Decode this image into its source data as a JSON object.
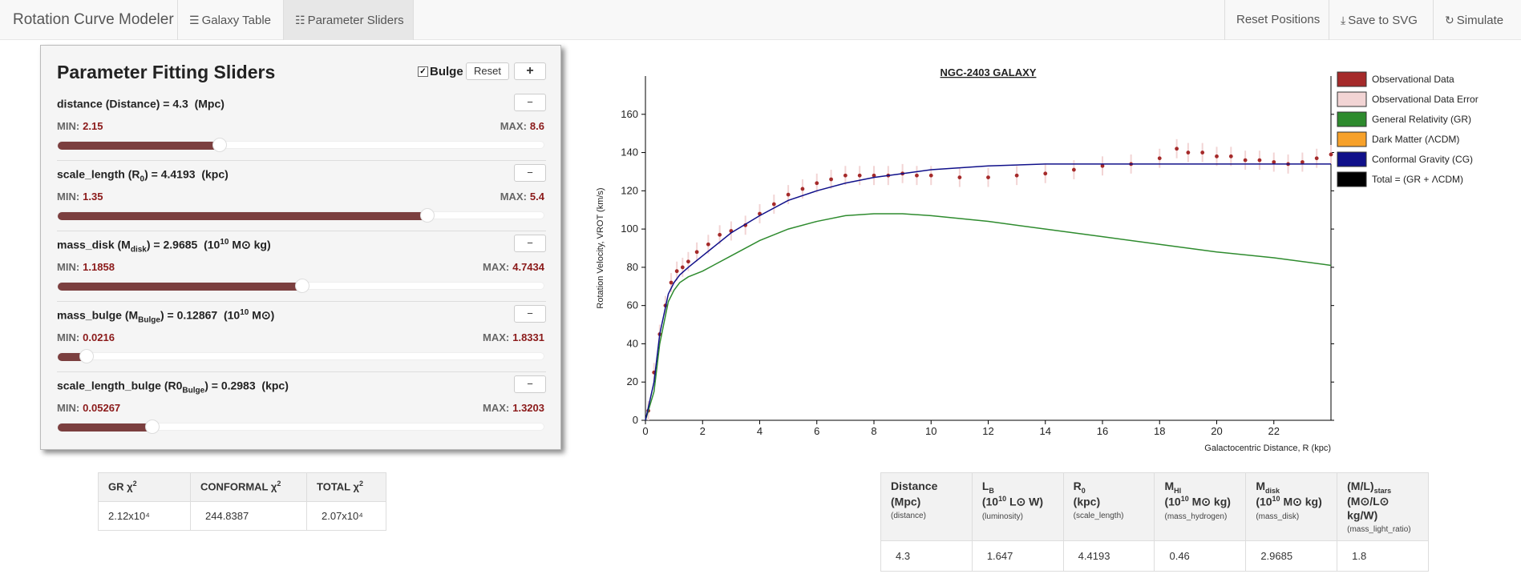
{
  "navbar": {
    "brand": "Rotation Curve Modeler",
    "galaxy_table": "Galaxy Table",
    "parameter_sliders": "Parameter Sliders",
    "reset_positions": "Reset Positions",
    "save_svg": "Save to SVG",
    "simulate": "Simulate"
  },
  "panel": {
    "title": "Parameter Fitting Sliders",
    "bulge_label": "Bulge",
    "bulge_checked": true,
    "reset_label": "Reset",
    "add_label": "+",
    "minus_label": "−",
    "min_label": "MIN:",
    "max_label": "MAX:",
    "sliders": [
      {
        "name": "distance",
        "symbol": "Distance",
        "sub": "",
        "value": "4.3",
        "unit_pre": "",
        "unit_sup": "",
        "unit_post": "(Mpc)",
        "min": "2.15",
        "max": "8.6",
        "fraction": 0.333
      },
      {
        "name": "scale_length",
        "symbol": "R",
        "sub": "0",
        "value": "4.4193",
        "unit_pre": "",
        "unit_sup": "",
        "unit_post": "(kpc)",
        "min": "1.35",
        "max": "5.4",
        "fraction": 0.758
      },
      {
        "name": "mass_disk",
        "symbol": "M",
        "sub": "disk",
        "value": "2.9685",
        "unit_pre": "(10",
        "unit_sup": "10",
        "unit_post": "M⊙ kg)",
        "min": "1.1858",
        "max": "4.7434",
        "fraction": 0.501
      },
      {
        "name": "mass_bulge",
        "symbol": "M",
        "sub": "Bulge",
        "value": "0.12867",
        "unit_pre": "(10",
        "unit_sup": "10",
        "unit_post": "M⊙)",
        "min": "0.0216",
        "max": "1.8331",
        "fraction": 0.059
      },
      {
        "name": "scale_length_bulge",
        "symbol": "R0",
        "sub": "Bulge",
        "value": "0.2983",
        "unit_pre": "",
        "unit_sup": "",
        "unit_post": "(kpc)",
        "min": "0.05267",
        "max": "1.3203",
        "fraction": 0.194
      }
    ]
  },
  "chi_table": {
    "headers": [
      {
        "main": "GR χ",
        "sup": "2"
      },
      {
        "main": "CONFORMAL χ",
        "sup": "2"
      },
      {
        "main": "TOTAL χ",
        "sup": "2"
      }
    ],
    "values": [
      "2.12x10⁴",
      "244.8387",
      "2.07x10⁴"
    ]
  },
  "param_table": {
    "headers": [
      {
        "l1": "Distance",
        "l1_sub": "",
        "l2_pre": "(Mpc)",
        "l2_sup": "",
        "l2_post": "",
        "note": "(distance)"
      },
      {
        "l1": "L",
        "l1_sub": "B",
        "l2_pre": "(10",
        "l2_sup": "10",
        "l2_post": " L⊙ W)",
        "note": "(luminosity)"
      },
      {
        "l1": "R",
        "l1_sub": "0",
        "l2_pre": "(kpc)",
        "l2_sup": "",
        "l2_post": "",
        "note": "(scale_length)"
      },
      {
        "l1": "M",
        "l1_sub": "HI",
        "l2_pre": "(10",
        "l2_sup": "10",
        "l2_post": " M⊙ kg)",
        "note": "(mass_hydrogen)"
      },
      {
        "l1": "M",
        "l1_sub": "disk",
        "l2_pre": "(10",
        "l2_sup": "10",
        "l2_post": " M⊙ kg)",
        "note": "(mass_disk)"
      },
      {
        "l1": "(M/L)",
        "l1_sub": "stars",
        "l2_pre": "(M⊙/L⊙ kg/W)",
        "l2_sup": "",
        "l2_post": "",
        "note": "(mass_light_ratio)"
      }
    ],
    "values": [
      "4.3",
      "1.647",
      "4.4193",
      "0.46",
      "2.9685",
      "1.8"
    ]
  },
  "chart_data": {
    "type": "line",
    "title": "NGC-2403 GALAXY",
    "xlabel": "Galactocentric Distance, R (kpc)",
    "ylabel": "Rotation Velocity, VROT (km/s)",
    "xlim": [
      0,
      24
    ],
    "ylim": [
      0,
      180
    ],
    "xticks": [
      "0",
      "2",
      "4",
      "6",
      "8",
      "10",
      "12",
      "14",
      "16",
      "18",
      "20",
      "22"
    ],
    "yticks": [
      "0",
      "20",
      "40",
      "60",
      "80",
      "100",
      "120",
      "140",
      "160"
    ],
    "legend": [
      {
        "label": "Observational Data",
        "color": "#a52a2a"
      },
      {
        "label": "Observational Data Error",
        "color": "#f2d4d4"
      },
      {
        "label": "General Relativity (GR)",
        "color": "#2e8b2e"
      },
      {
        "label": "Dark Matter (ΛCDM)",
        "color": "#f7a12a"
      },
      {
        "label": "Conformal Gravity (CG)",
        "color": "#10108a"
      },
      {
        "label": "Total = (GR + ΛCDM)",
        "color": "#000000"
      }
    ],
    "series": [
      {
        "name": "Observational Data",
        "x": [
          0.1,
          0.3,
          0.5,
          0.7,
          0.9,
          1.1,
          1.3,
          1.5,
          1.8,
          2.2,
          2.6,
          3.0,
          3.5,
          4.0,
          4.5,
          5.0,
          5.5,
          6.0,
          6.5,
          7.0,
          7.5,
          8.0,
          8.5,
          9.0,
          9.5,
          10.0,
          11.0,
          12.0,
          13.0,
          14.0,
          15.0,
          16.0,
          17.0,
          18.0,
          18.6,
          19.0,
          19.5,
          20.0,
          20.5,
          21.0,
          21.5,
          22.0,
          22.5,
          23.0,
          23.5,
          24.0
        ],
        "y": [
          5,
          25,
          45,
          60,
          72,
          78,
          80,
          83,
          88,
          92,
          97,
          99,
          102,
          108,
          113,
          118,
          121,
          124,
          126,
          128,
          128,
          128,
          128,
          129,
          128,
          128,
          127,
          127,
          128,
          129,
          131,
          133,
          134,
          137,
          142,
          140,
          140,
          138,
          138,
          136,
          136,
          135,
          134,
          135,
          137,
          139
        ]
      },
      {
        "name": "General Relativity (GR)",
        "x": [
          0,
          0.3,
          0.5,
          0.8,
          1.0,
          1.2,
          1.5,
          2.0,
          3.0,
          4.0,
          5.0,
          6.0,
          7.0,
          8.0,
          9.0,
          10.0,
          12.0,
          14.0,
          16.0,
          18.0,
          20.0,
          22.0,
          24.0
        ],
        "y": [
          0,
          15,
          40,
          62,
          68,
          72,
          75,
          78,
          86,
          94,
          100,
          104,
          107,
          108,
          108,
          107,
          104,
          100,
          96,
          92,
          88,
          85,
          81
        ]
      },
      {
        "name": "Conformal Gravity (CG)",
        "x": [
          0,
          0.3,
          0.5,
          0.8,
          1.0,
          1.2,
          1.5,
          2.0,
          3.0,
          4.0,
          5.0,
          6.0,
          7.0,
          8.0,
          9.0,
          10.0,
          12.0,
          14.0,
          16.0,
          18.0,
          20.0,
          22.0,
          24.0
        ],
        "y": [
          0,
          20,
          45,
          66,
          72,
          76,
          80,
          86,
          98,
          107,
          115,
          120,
          124,
          127,
          129,
          131,
          133,
          134,
          134,
          134,
          134,
          134,
          134
        ]
      }
    ]
  }
}
